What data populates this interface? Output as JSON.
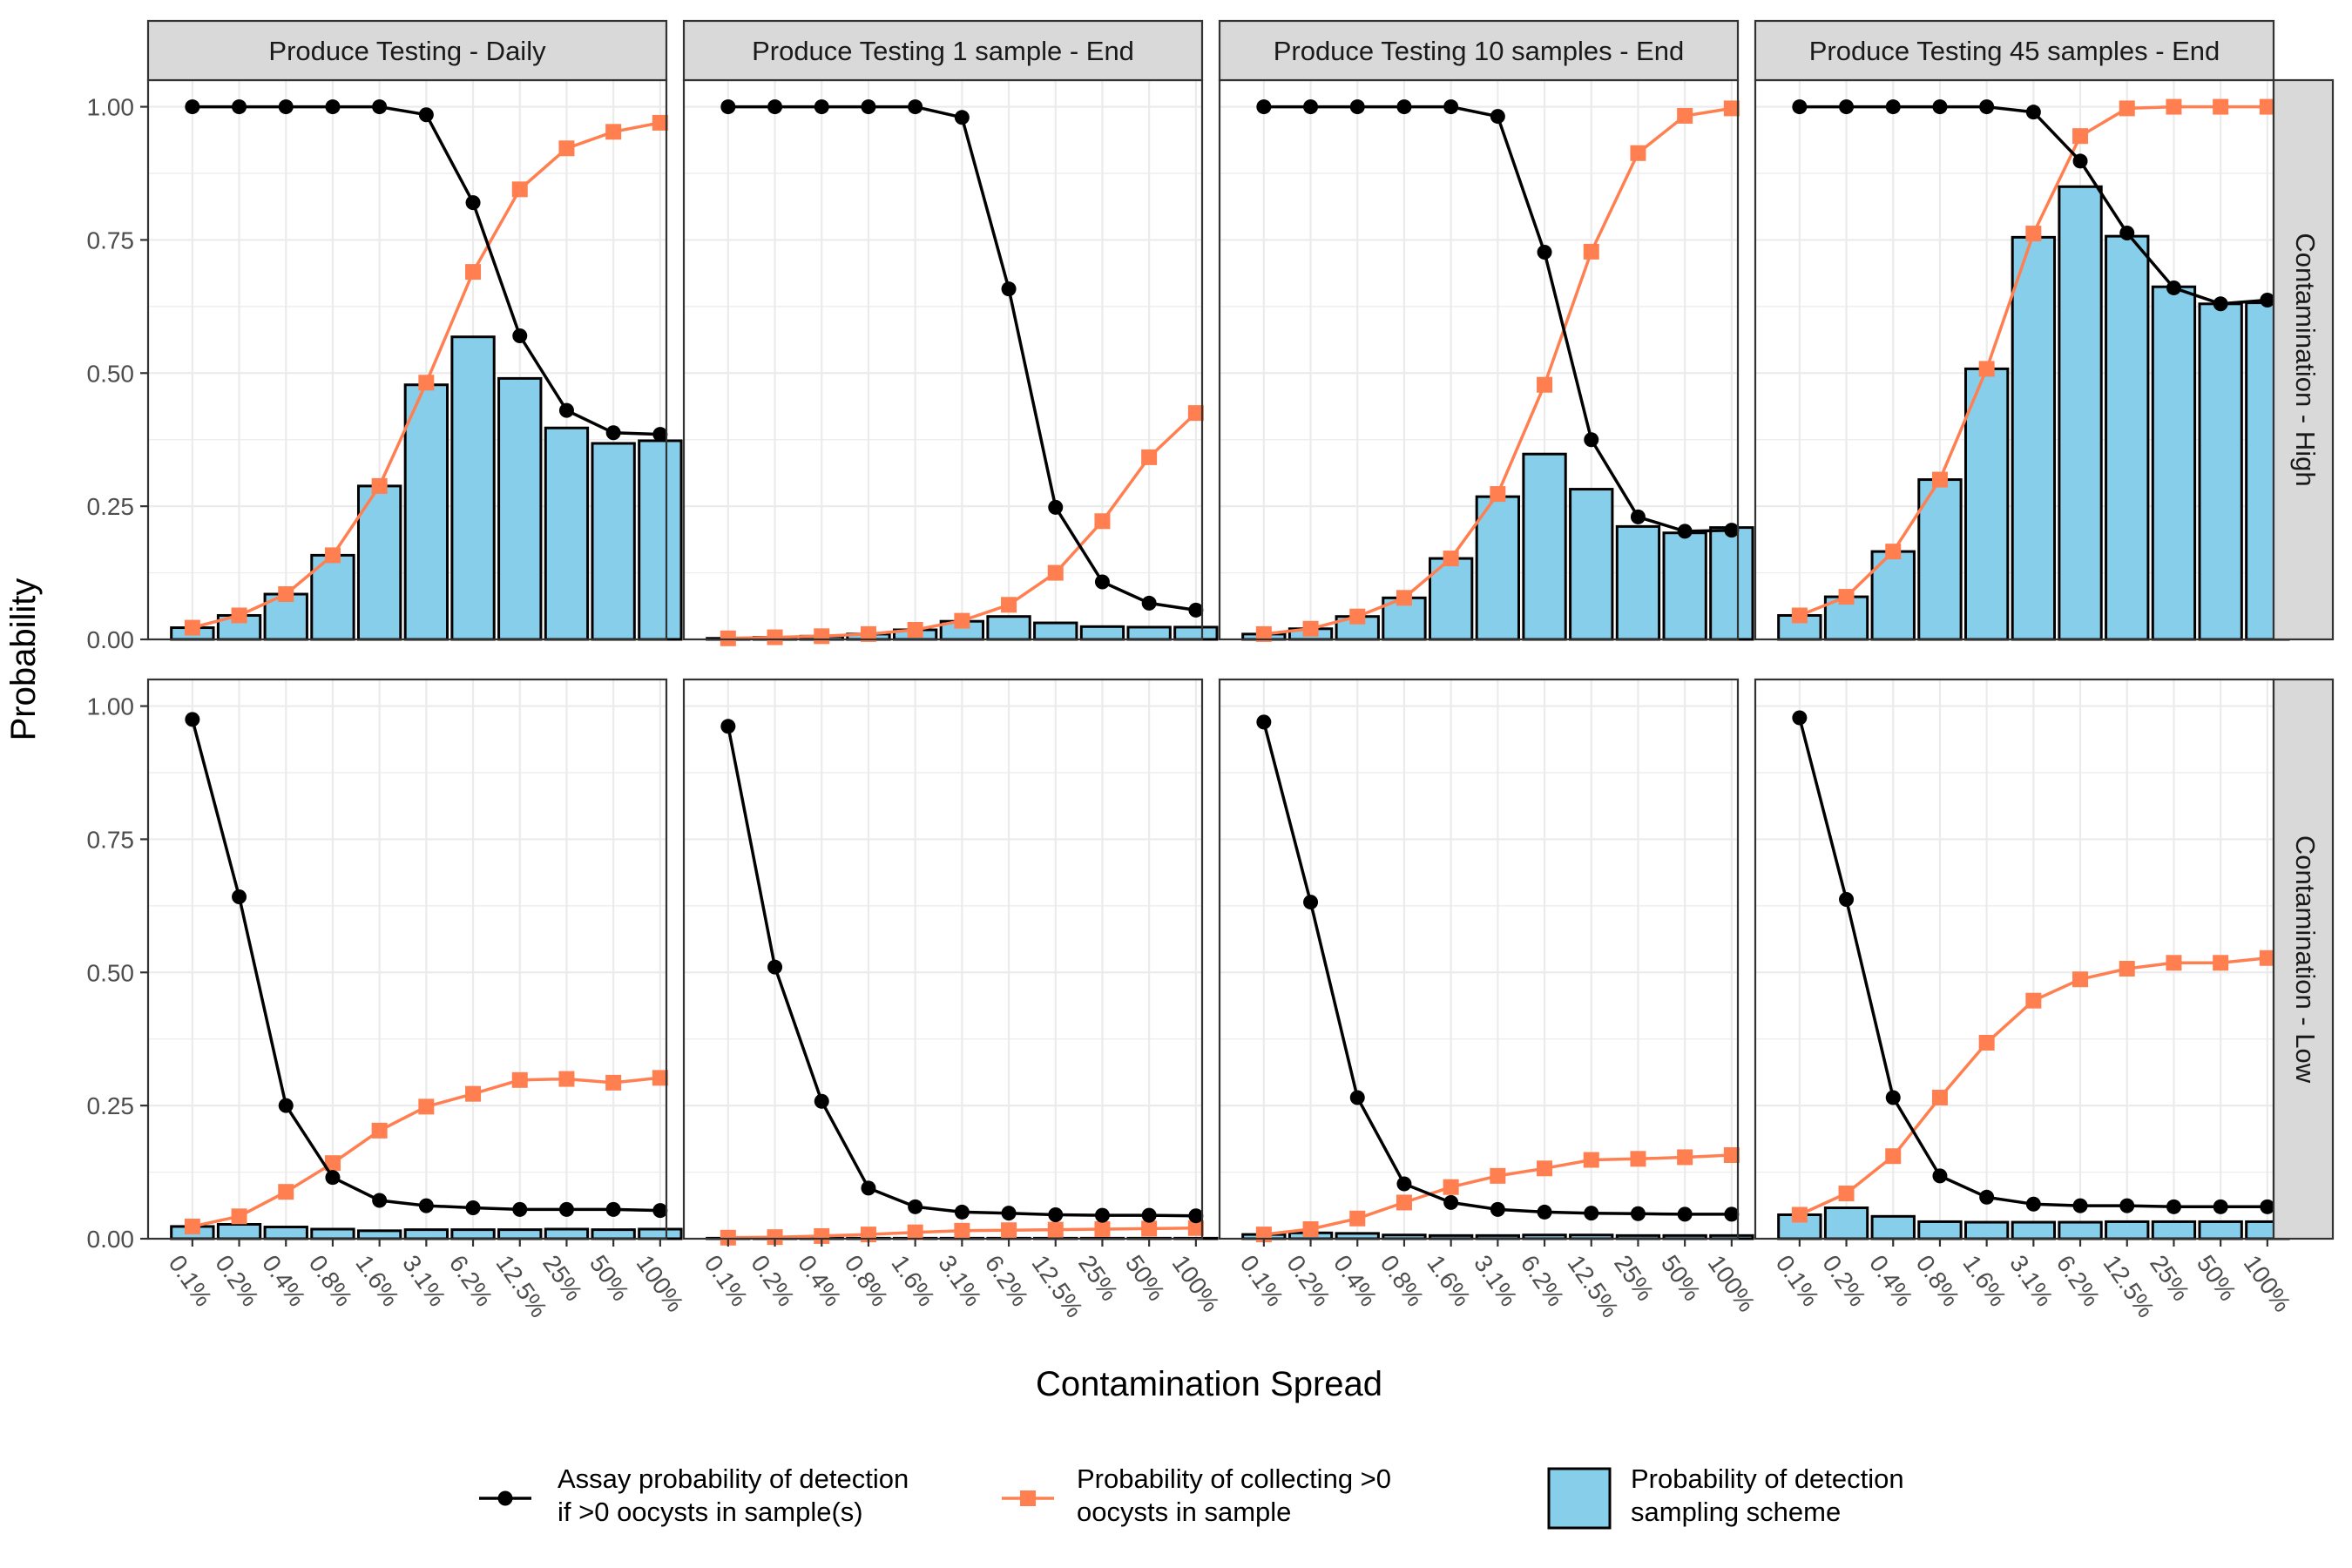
{
  "chart_data": {
    "type": "bar",
    "xlabel": "Contamination Spread",
    "ylabel": "Probability",
    "ylim": [
      0,
      1.05
    ],
    "y_ticks": [
      "0.00",
      "0.25",
      "0.50",
      "0.75",
      "1.00"
    ],
    "categories": [
      "0.1%",
      "0.2%",
      "0.4%",
      "0.8%",
      "1.6%",
      "3.1%",
      "6.2%",
      "12.5%",
      "25%",
      "50%",
      "100%"
    ],
    "grid": true,
    "legend_position": "bottom",
    "colors": {
      "assay_line": "#000000",
      "collect_line": "#FF7F50",
      "bar_fill": "#87CEEB",
      "bar_outline": "#000000",
      "strip_fill": "#D9D9D9",
      "grid": "#EBEBEB"
    },
    "series_names": {
      "assay": "Assay probability of detection\nif >0 oocysts in sample(s)",
      "collect": "Probability of collecting >0\n oocysts in sample",
      "bars": "Probability of detection\nsampling scheme"
    },
    "columns": [
      "Produce Testing - Daily",
      "Produce Testing 1 sample - End",
      "Produce Testing 10 samples - End",
      "Produce Testing 45 samples - End"
    ],
    "rows": [
      "Contamination - High",
      "Contamination - Low"
    ],
    "panels": [
      {
        "row": 0,
        "col": 0,
        "assay": [
          1.0,
          1.0,
          1.0,
          1.0,
          1.0,
          0.985,
          0.82,
          0.57,
          0.43,
          0.388,
          0.385
        ],
        "collect": [
          0.022,
          0.045,
          0.085,
          0.158,
          0.288,
          0.482,
          0.69,
          0.845,
          0.922,
          0.953,
          0.97
        ],
        "bars": [
          0.022,
          0.045,
          0.085,
          0.158,
          0.288,
          0.478,
          0.568,
          0.49,
          0.397,
          0.368,
          0.373
        ]
      },
      {
        "row": 0,
        "col": 1,
        "assay": [
          1.0,
          1.0,
          1.0,
          1.0,
          1.0,
          0.98,
          0.658,
          0.248,
          0.108,
          0.068,
          0.055
        ],
        "collect": [
          0.002,
          0.004,
          0.006,
          0.01,
          0.018,
          0.035,
          0.065,
          0.125,
          0.222,
          0.342,
          0.425
        ],
        "bars": [
          0.002,
          0.004,
          0.006,
          0.01,
          0.018,
          0.034,
          0.043,
          0.031,
          0.024,
          0.023,
          0.023
        ]
      },
      {
        "row": 0,
        "col": 2,
        "assay": [
          1.0,
          1.0,
          1.0,
          1.0,
          1.0,
          0.982,
          0.727,
          0.375,
          0.23,
          0.203,
          0.205
        ],
        "collect": [
          0.01,
          0.02,
          0.043,
          0.078,
          0.152,
          0.273,
          0.478,
          0.728,
          0.913,
          0.983,
          0.997
        ],
        "bars": [
          0.01,
          0.02,
          0.043,
          0.078,
          0.152,
          0.268,
          0.348,
          0.282,
          0.212,
          0.2,
          0.21
        ]
      },
      {
        "row": 0,
        "col": 3,
        "assay": [
          1.0,
          1.0,
          1.0,
          1.0,
          1.0,
          0.99,
          0.898,
          0.763,
          0.66,
          0.63,
          0.637
        ],
        "collect": [
          0.045,
          0.08,
          0.165,
          0.3,
          0.508,
          0.762,
          0.945,
          0.997,
          1.0,
          1.0,
          1.0
        ],
        "bars": [
          0.045,
          0.08,
          0.165,
          0.3,
          0.508,
          0.755,
          0.85,
          0.757,
          0.662,
          0.63,
          0.632
        ]
      },
      {
        "row": 1,
        "col": 0,
        "assay": [
          0.975,
          0.642,
          0.25,
          0.115,
          0.072,
          0.062,
          0.058,
          0.055,
          0.055,
          0.055,
          0.053
        ],
        "collect": [
          0.023,
          0.042,
          0.088,
          0.142,
          0.203,
          0.248,
          0.272,
          0.298,
          0.3,
          0.293,
          0.302
        ],
        "bars": [
          0.023,
          0.027,
          0.022,
          0.018,
          0.015,
          0.017,
          0.017,
          0.017,
          0.018,
          0.017,
          0.018
        ]
      },
      {
        "row": 1,
        "col": 1,
        "assay": [
          0.962,
          0.51,
          0.258,
          0.095,
          0.06,
          0.05,
          0.048,
          0.045,
          0.044,
          0.044,
          0.043
        ],
        "collect": [
          0.002,
          0.003,
          0.005,
          0.008,
          0.012,
          0.015,
          0.016,
          0.017,
          0.018,
          0.019,
          0.02
        ],
        "bars": [
          0.001,
          0.001,
          0.001,
          0.001,
          0.001,
          0.001,
          0.001,
          0.001,
          0.001,
          0.001,
          0.001
        ]
      },
      {
        "row": 1,
        "col": 2,
        "assay": [
          0.97,
          0.632,
          0.265,
          0.103,
          0.068,
          0.055,
          0.05,
          0.048,
          0.047,
          0.046,
          0.046
        ],
        "collect": [
          0.008,
          0.018,
          0.038,
          0.068,
          0.097,
          0.118,
          0.132,
          0.148,
          0.15,
          0.153,
          0.157
        ],
        "bars": [
          0.008,
          0.011,
          0.01,
          0.007,
          0.006,
          0.006,
          0.007,
          0.007,
          0.006,
          0.006,
          0.006
        ]
      },
      {
        "row": 1,
        "col": 3,
        "assay": [
          0.978,
          0.637,
          0.265,
          0.118,
          0.078,
          0.065,
          0.062,
          0.062,
          0.06,
          0.06,
          0.06
        ],
        "collect": [
          0.045,
          0.085,
          0.155,
          0.265,
          0.368,
          0.447,
          0.487,
          0.507,
          0.518,
          0.518,
          0.527
        ],
        "bars": [
          0.045,
          0.058,
          0.042,
          0.032,
          0.031,
          0.031,
          0.031,
          0.032,
          0.032,
          0.032,
          0.032
        ]
      }
    ]
  }
}
